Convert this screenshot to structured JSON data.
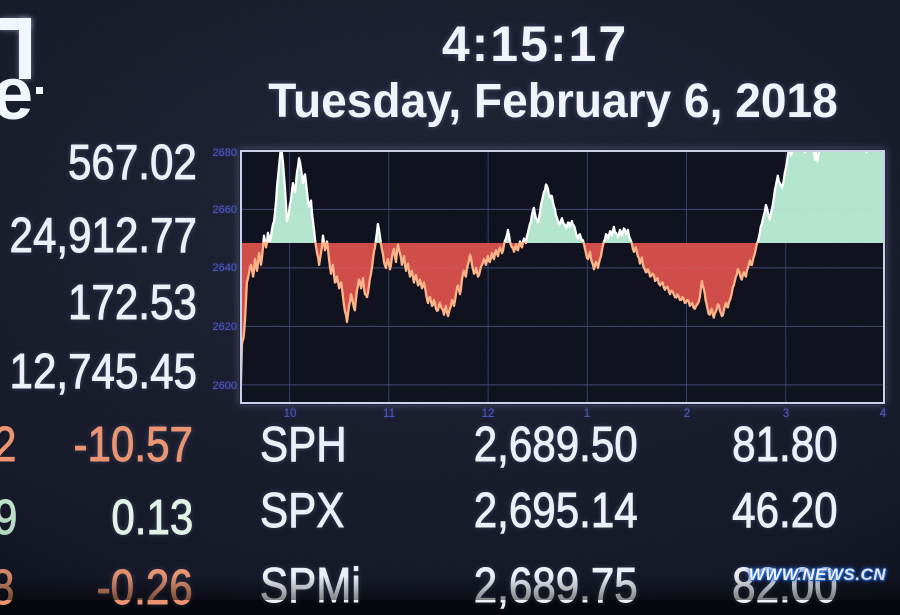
{
  "header": {
    "time": "4:15:17",
    "date": "Tuesday, February 6, 2018"
  },
  "logo": {
    "partial_letter": "e"
  },
  "left_panel": {
    "quotes": [
      {
        "value": "567.02"
      },
      {
        "value": "24,912.77"
      },
      {
        "value": "172.53"
      },
      {
        "value": "12,745.45"
      }
    ],
    "changes": [
      {
        "clipped_digit": "2",
        "value": "-10.57",
        "direction": "down"
      },
      {
        "clipped_digit": "9",
        "value": "0.13",
        "direction": "up"
      },
      {
        "clipped_digit": "8",
        "value": "-0.26",
        "direction": "down"
      }
    ]
  },
  "quote_table": {
    "rows": [
      {
        "symbol": "SPH",
        "last": "2,689.50",
        "change": "81.80"
      },
      {
        "symbol": "SPX",
        "last": "2,695.14",
        "change": "46.20"
      },
      {
        "symbol": "SPMi",
        "last": "2,689.75",
        "change": "82.00"
      }
    ]
  },
  "watermark": "WWW.NEWS.CN",
  "colors": {
    "up_fill": "#b4e6cf",
    "down_fill": "#d14b46",
    "line_above": "#ffffff",
    "line_below": "#ffb488",
    "grid": "#353b66",
    "tick_label": "#4c58c4",
    "plot_bg": "#0c0e1b",
    "plot_border": "#ced2ec",
    "negative_text": "#ec9470",
    "positive_text": "#e2f3e8"
  },
  "chart_data": {
    "type": "area",
    "title": "",
    "xlabel_ticks": [
      "10",
      "11",
      "12",
      "1",
      "2",
      "3",
      "4"
    ],
    "ylabel_ticks": [
      "2680",
      "2660",
      "2640",
      "2620",
      "2600"
    ],
    "grid_minutes": [
      30,
      90,
      150,
      210,
      270,
      330
    ],
    "grid_values": [
      2660,
      2640,
      2620,
      2600
    ],
    "x_range_minutes": [
      0,
      390
    ],
    "session_open": "9:30",
    "session_close": "4:00",
    "y_top": 2680.3,
    "y_bottom": 2593.46,
    "baseline_prev_close": 2648.5,
    "points": [
      [
        0.3,
        2595
      ],
      [
        1.2,
        2614
      ],
      [
        2.1,
        2616
      ],
      [
        3,
        2622
      ],
      [
        4.2,
        2635
      ],
      [
        5.4,
        2638
      ],
      [
        6.7,
        2641
      ],
      [
        7.9,
        2637
      ],
      [
        9.1,
        2643
      ],
      [
        10.3,
        2639
      ],
      [
        11.5,
        2645
      ],
      [
        12.7,
        2641
      ],
      [
        13.9,
        2647
      ],
      [
        14.5,
        2651
      ],
      [
        15.7,
        2647
      ],
      [
        16.9,
        2652
      ],
      [
        18.1,
        2649
      ],
      [
        19.3,
        2653
      ],
      [
        20.6,
        2656
      ],
      [
        21.8,
        2663
      ],
      [
        23,
        2671
      ],
      [
        24.2,
        2678
      ],
      [
        24.8,
        2681.5
      ],
      [
        26,
        2676
      ],
      [
        27.2,
        2667
      ],
      [
        28.4,
        2656
      ],
      [
        29.6,
        2659
      ],
      [
        30.8,
        2663
      ],
      [
        32,
        2669
      ],
      [
        33.3,
        2666
      ],
      [
        34.5,
        2673
      ],
      [
        35.7,
        2677.5
      ],
      [
        36.9,
        2674
      ],
      [
        38.1,
        2669
      ],
      [
        39.3,
        2672
      ],
      [
        40.5,
        2666
      ],
      [
        41.7,
        2661
      ],
      [
        42.9,
        2663
      ],
      [
        44.1,
        2656
      ],
      [
        45.3,
        2650
      ],
      [
        46.6,
        2645
      ],
      [
        47.8,
        2641
      ],
      [
        49,
        2645
      ],
      [
        50.2,
        2651
      ],
      [
        51.4,
        2646
      ],
      [
        52.6,
        2649
      ],
      [
        53.8,
        2643
      ],
      [
        55,
        2638
      ],
      [
        56.2,
        2641
      ],
      [
        57.4,
        2635
      ],
      [
        58.6,
        2637
      ],
      [
        59.9,
        2633
      ],
      [
        61.1,
        2635
      ],
      [
        62.3,
        2630
      ],
      [
        63.5,
        2625
      ],
      [
        64.7,
        2621.5
      ],
      [
        65.9,
        2627
      ],
      [
        67.1,
        2631
      ],
      [
        68.3,
        2628
      ],
      [
        69.5,
        2625.5
      ],
      [
        70.7,
        2632
      ],
      [
        71.9,
        2636
      ],
      [
        73.2,
        2633
      ],
      [
        74.4,
        2636.5
      ],
      [
        75.6,
        2631
      ],
      [
        76.8,
        2630
      ],
      [
        78,
        2634
      ],
      [
        79.2,
        2638
      ],
      [
        80.4,
        2643
      ],
      [
        81.6,
        2647
      ],
      [
        82.8,
        2652
      ],
      [
        83.4,
        2655
      ],
      [
        84.6,
        2651
      ],
      [
        85.9,
        2646
      ],
      [
        87.1,
        2642
      ],
      [
        88.3,
        2640
      ],
      [
        89.5,
        2643
      ],
      [
        90.7,
        2639.5
      ],
      [
        91.9,
        2644
      ],
      [
        93.1,
        2646.5
      ],
      [
        94.3,
        2642
      ],
      [
        95.5,
        2648
      ],
      [
        96.7,
        2645
      ],
      [
        97.9,
        2641
      ],
      [
        99.2,
        2644
      ],
      [
        100.4,
        2639
      ],
      [
        101.6,
        2641.5
      ],
      [
        102.8,
        2637
      ],
      [
        104,
        2639
      ],
      [
        105.2,
        2635
      ],
      [
        106.4,
        2637.5
      ],
      [
        107.6,
        2634
      ],
      [
        108.8,
        2636
      ],
      [
        110,
        2633
      ],
      [
        111.2,
        2635
      ],
      [
        112.5,
        2631
      ],
      [
        113.7,
        2628
      ],
      [
        114.9,
        2630
      ],
      [
        116.1,
        2627
      ],
      [
        117.3,
        2629
      ],
      [
        118.5,
        2626
      ],
      [
        119.7,
        2625.5
      ],
      [
        120.9,
        2628
      ],
      [
        122.1,
        2626
      ],
      [
        123.3,
        2624
      ],
      [
        124.5,
        2627
      ],
      [
        125.8,
        2623.5
      ],
      [
        127,
        2626
      ],
      [
        128.2,
        2629
      ],
      [
        129.4,
        2627
      ],
      [
        130.6,
        2631
      ],
      [
        131.8,
        2634
      ],
      [
        133,
        2631
      ],
      [
        134.2,
        2636
      ],
      [
        135.4,
        2639
      ],
      [
        136.6,
        2637
      ],
      [
        137.8,
        2641
      ],
      [
        139.1,
        2644.5
      ],
      [
        140.3,
        2641
      ],
      [
        141.5,
        2638
      ],
      [
        142.7,
        2640
      ],
      [
        143.9,
        2637
      ],
      [
        145.1,
        2639
      ],
      [
        146.3,
        2641
      ],
      [
        147.5,
        2643
      ],
      [
        148.7,
        2641
      ],
      [
        149.9,
        2644
      ],
      [
        151.1,
        2642
      ],
      [
        152.4,
        2645
      ],
      [
        153.6,
        2643
      ],
      [
        154.8,
        2646
      ],
      [
        156,
        2644
      ],
      [
        157.2,
        2647
      ],
      [
        158.4,
        2645
      ],
      [
        159.6,
        2648
      ],
      [
        160.8,
        2650
      ],
      [
        162,
        2653
      ],
      [
        163.2,
        2649
      ],
      [
        164.4,
        2647
      ],
      [
        165.7,
        2645.5
      ],
      [
        166.9,
        2648
      ],
      [
        168.1,
        2646
      ],
      [
        169.3,
        2649
      ],
      [
        170.5,
        2647
      ],
      [
        171.7,
        2650
      ],
      [
        172.9,
        2648.5
      ],
      [
        174.1,
        2652
      ],
      [
        175.3,
        2655
      ],
      [
        176.5,
        2658
      ],
      [
        177.7,
        2660.5
      ],
      [
        179,
        2657
      ],
      [
        180.2,
        2655.5
      ],
      [
        181.4,
        2659
      ],
      [
        182.6,
        2663
      ],
      [
        183.8,
        2666
      ],
      [
        185,
        2668.5
      ],
      [
        186.2,
        2667
      ],
      [
        187.4,
        2664
      ],
      [
        188.6,
        2664.5
      ],
      [
        189.8,
        2661
      ],
      [
        191,
        2658
      ],
      [
        192.3,
        2656
      ],
      [
        193.5,
        2655
      ],
      [
        194.7,
        2657
      ],
      [
        195.9,
        2655
      ],
      [
        197.1,
        2653.5
      ],
      [
        198.3,
        2655.5
      ],
      [
        199.5,
        2654
      ],
      [
        200.7,
        2656
      ],
      [
        201.9,
        2654.5
      ],
      [
        203.1,
        2652
      ],
      [
        204.3,
        2650
      ],
      [
        205.5,
        2651.5
      ],
      [
        206.8,
        2649.5
      ],
      [
        208,
        2648
      ],
      [
        209.2,
        2645
      ],
      [
        210.4,
        2643
      ],
      [
        211.6,
        2645.5
      ],
      [
        212.8,
        2642
      ],
      [
        214,
        2639.5
      ],
      [
        215.2,
        2642
      ],
      [
        216.4,
        2640
      ],
      [
        217.6,
        2643
      ],
      [
        218.8,
        2646
      ],
      [
        220.1,
        2649
      ],
      [
        221.3,
        2651.5
      ],
      [
        222.5,
        2650
      ],
      [
        223.7,
        2652.5
      ],
      [
        224.9,
        2651
      ],
      [
        226.1,
        2654
      ],
      [
        227.3,
        2652
      ],
      [
        228.5,
        2650.5
      ],
      [
        229.7,
        2653
      ],
      [
        230.9,
        2651
      ],
      [
        232.1,
        2653.5
      ],
      [
        233.4,
        2651.5
      ],
      [
        234.6,
        2653
      ],
      [
        235.8,
        2650
      ],
      [
        237,
        2648
      ],
      [
        238.2,
        2645.5
      ],
      [
        239.4,
        2647
      ],
      [
        240.6,
        2644
      ],
      [
        241.8,
        2641.5
      ],
      [
        243,
        2643.5
      ],
      [
        244.2,
        2640
      ],
      [
        245.4,
        2638.5
      ],
      [
        246.6,
        2639.5
      ],
      [
        248,
        2637
      ],
      [
        249.5,
        2638
      ],
      [
        251,
        2635.5
      ],
      [
        252.5,
        2636.5
      ],
      [
        254,
        2634
      ],
      [
        255.5,
        2635
      ],
      [
        257,
        2632.5
      ],
      [
        258.5,
        2633.5
      ],
      [
        260,
        2631
      ],
      [
        261.5,
        2632
      ],
      [
        263,
        2630
      ],
      [
        264.5,
        2631
      ],
      [
        266,
        2629
      ],
      [
        267.5,
        2630
      ],
      [
        269,
        2628
      ],
      [
        270.5,
        2629
      ],
      [
        272,
        2627
      ],
      [
        273.5,
        2628
      ],
      [
        275,
        2626
      ],
      [
        276.5,
        2627.5
      ],
      [
        278.1,
        2630
      ],
      [
        279.3,
        2635.5
      ],
      [
        280.3,
        2633
      ],
      [
        281.5,
        2629
      ],
      [
        282.7,
        2626
      ],
      [
        284,
        2624
      ],
      [
        285.2,
        2626
      ],
      [
        286.5,
        2623
      ],
      [
        287.7,
        2625
      ],
      [
        288.9,
        2627.5
      ],
      [
        290.1,
        2625.5
      ],
      [
        291.4,
        2623.5
      ],
      [
        292.6,
        2625.5
      ],
      [
        293.8,
        2628
      ],
      [
        295,
        2626.5
      ],
      [
        296.2,
        2629
      ],
      [
        297.4,
        2631.5
      ],
      [
        298.6,
        2634
      ],
      [
        299.8,
        2637
      ],
      [
        301,
        2639.5
      ],
      [
        302.2,
        2638
      ],
      [
        303.4,
        2636
      ],
      [
        304.7,
        2638.5
      ],
      [
        305.9,
        2637
      ],
      [
        307.1,
        2640
      ],
      [
        308.3,
        2642.5
      ],
      [
        309.5,
        2641
      ],
      [
        310.7,
        2644
      ],
      [
        311.9,
        2646.5
      ],
      [
        313.1,
        2649
      ],
      [
        314.3,
        2652
      ],
      [
        315.5,
        2655
      ],
      [
        316.7,
        2658
      ],
      [
        318,
        2661.5
      ],
      [
        319.2,
        2659
      ],
      [
        320.4,
        2656.5
      ],
      [
        321.6,
        2660
      ],
      [
        322.8,
        2664
      ],
      [
        324,
        2668
      ],
      [
        325.2,
        2671.5
      ],
      [
        326.4,
        2669
      ],
      [
        327.6,
        2667.5
      ],
      [
        328.8,
        2670
      ],
      [
        330,
        2674
      ],
      [
        331.2,
        2678
      ],
      [
        332.3,
        2681
      ],
      [
        333.2,
        2678.5
      ],
      [
        334.2,
        2682
      ],
      [
        335.4,
        2685
      ],
      [
        337,
        2687
      ],
      [
        339.5,
        2687
      ],
      [
        340.6,
        2683
      ],
      [
        341.6,
        2679.5
      ],
      [
        342.6,
        2683
      ],
      [
        343.8,
        2687
      ],
      [
        345.5,
        2687
      ],
      [
        346.6,
        2682
      ],
      [
        347.6,
        2677
      ],
      [
        348.4,
        2679.5
      ],
      [
        349.2,
        2676.5
      ],
      [
        350.2,
        2680
      ],
      [
        351.4,
        2684
      ],
      [
        353,
        2687
      ],
      [
        357,
        2687
      ],
      [
        360.3,
        2687
      ],
      [
        364,
        2687
      ],
      [
        368,
        2687
      ],
      [
        372,
        2687
      ],
      [
        376,
        2687
      ],
      [
        377.8,
        2683
      ],
      [
        378.8,
        2679.5
      ],
      [
        379.8,
        2683
      ],
      [
        381,
        2687
      ],
      [
        385,
        2687
      ],
      [
        389.9,
        2687
      ]
    ]
  }
}
